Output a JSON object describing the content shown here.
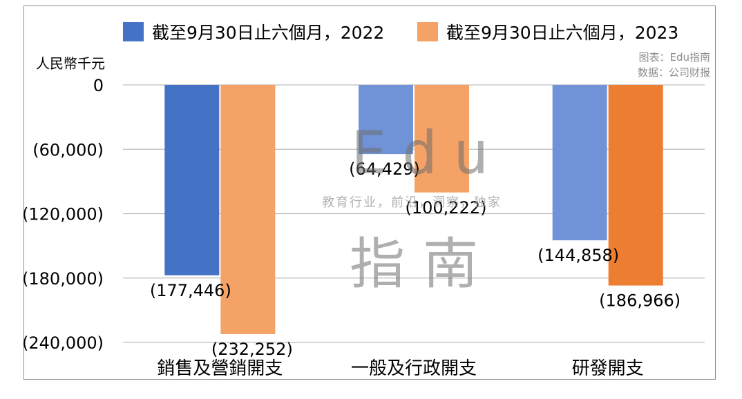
{
  "legend": [
    {
      "label": "截至9月30日止六個月，2022",
      "color": "#4472C4"
    },
    {
      "label": "截至9月30日止六個月，2023",
      "color": "#F4A266"
    }
  ],
  "unit_label": "人民幣千元",
  "credits": {
    "line1": "图表：Edu指南",
    "line2": "数据：公司财报"
  },
  "watermark": {
    "edu": "Edu",
    "tagline": "教育行业，前沿，洞察，独家",
    "zhinan": "指南"
  },
  "chart_data": {
    "type": "bar",
    "categories": [
      "銷售及營銷開支",
      "一般及行政開支",
      "研發開支"
    ],
    "series": [
      {
        "name": "截至9月30日止六個月，2022",
        "values": [
          -177446,
          -64429,
          -144858
        ],
        "colors": [
          "#4472C4",
          "#6F93D6",
          "#6F93D6"
        ]
      },
      {
        "name": "截至9月30日止六個月，2023",
        "values": [
          -232252,
          -100222,
          -186966
        ],
        "colors": [
          "#F4A266",
          "#F4A266",
          "#ED7D31"
        ]
      }
    ],
    "data_labels": [
      [
        "(177,446)",
        "(64,429)",
        "(144,858)"
      ],
      [
        "(232,252)",
        "(100,222)",
        "(186,966)"
      ]
    ],
    "yticks": [
      0,
      -60000,
      -120000,
      -180000,
      -240000
    ],
    "ytick_labels": [
      "0",
      "(60,000)",
      "(120,000)",
      "(180,000)",
      "(240,000)"
    ],
    "ylim": [
      -240000,
      0
    ],
    "grid": true,
    "legend_position": "top"
  }
}
